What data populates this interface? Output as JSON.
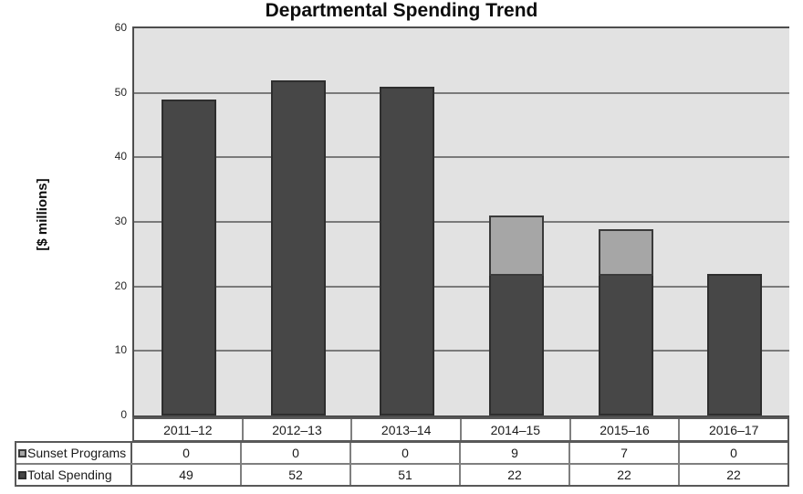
{
  "chart_data": {
    "type": "bar",
    "stacked": true,
    "title": "Departmental Spending Trend",
    "xlabel": "",
    "ylabel": "[$ millions]",
    "ylim": [
      0,
      60
    ],
    "ytick_step": 10,
    "grid": true,
    "legend_position": "table-left",
    "categories": [
      "2011–12",
      "2012–13",
      "2013–14",
      "2014–15",
      "2015–16",
      "2016–17"
    ],
    "series": [
      {
        "name": "Total Spending",
        "values": [
          49,
          52,
          51,
          22,
          22,
          22
        ],
        "fill": "#474747",
        "stroke": "#2e2e2e"
      },
      {
        "name": "Sunset Programs",
        "values": [
          0,
          0,
          0,
          9,
          7,
          0
        ],
        "fill": "#a6a6a6",
        "stroke": "#3a3a3a"
      }
    ],
    "table_row_order": [
      "Sunset Programs",
      "Total Spending"
    ],
    "colors": {
      "plot_bg": "#e2e2e2",
      "gridline": "#7a7a7a",
      "plot_border": "#4d4d4d",
      "table_outer_border": "#595959",
      "table_inner_border": "#7f7f7f",
      "title_text": "#0d0d0d",
      "tick_text": "#262626"
    }
  }
}
